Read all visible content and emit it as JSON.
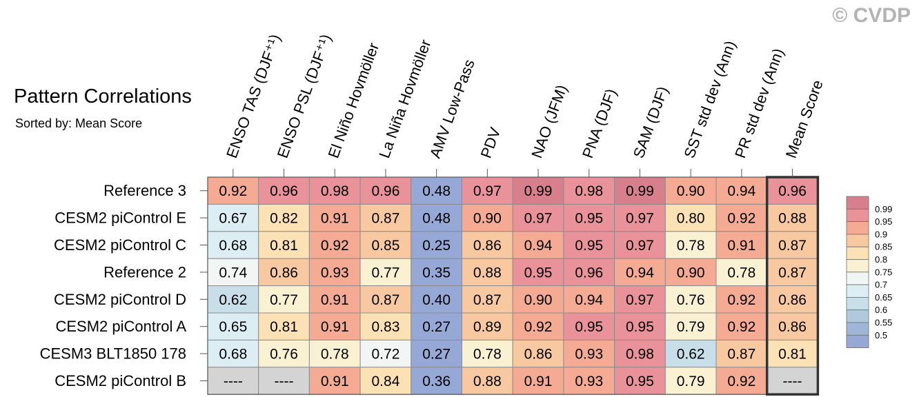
{
  "title": "Pattern Correlations",
  "subtitle": "Sorted by: Mean Score",
  "watermark": "© CVDP",
  "chart_data": {
    "type": "heatmap",
    "columns": [
      "ENSO TAS (DJF⁺¹)",
      "ENSO PSL (DJF⁺¹)",
      "El Niño Hovmöller",
      "La Niña Hovmöller",
      "AMV Low-Pass",
      "PDV",
      "NAO (JFM)",
      "PNA (DJF)",
      "SAM (DJF)",
      "SST std dev (Ann)",
      "PR std dev (Ann)",
      "Mean Score"
    ],
    "rows": [
      "Reference 3",
      "CESM2 piControl E",
      "CESM2 piControl C",
      "Reference 2",
      "CESM2 piControl D",
      "CESM2 piControl A",
      "CESM3 BLT1850 178",
      "CESM2 piControl B"
    ],
    "values": [
      [
        0.92,
        0.96,
        0.98,
        0.96,
        0.48,
        0.97,
        0.99,
        0.98,
        0.99,
        0.9,
        0.94,
        0.96
      ],
      [
        0.67,
        0.82,
        0.91,
        0.87,
        0.48,
        0.9,
        0.97,
        0.95,
        0.97,
        0.8,
        0.92,
        0.88
      ],
      [
        0.68,
        0.81,
        0.92,
        0.85,
        0.25,
        0.86,
        0.94,
        0.95,
        0.97,
        0.78,
        0.91,
        0.87
      ],
      [
        0.74,
        0.86,
        0.93,
        0.77,
        0.35,
        0.88,
        0.95,
        0.96,
        0.94,
        0.9,
        0.78,
        0.87
      ],
      [
        0.62,
        0.77,
        0.91,
        0.87,
        0.4,
        0.87,
        0.9,
        0.94,
        0.97,
        0.76,
        0.92,
        0.86
      ],
      [
        0.65,
        0.81,
        0.91,
        0.83,
        0.27,
        0.89,
        0.92,
        0.95,
        0.95,
        0.79,
        0.92,
        0.86
      ],
      [
        0.68,
        0.76,
        0.78,
        0.72,
        0.27,
        0.78,
        0.86,
        0.93,
        0.98,
        0.62,
        0.87,
        0.81
      ],
      [
        null,
        null,
        0.91,
        0.84,
        0.36,
        0.88,
        0.91,
        0.93,
        0.95,
        0.79,
        0.92,
        null
      ]
    ],
    "missing_label": "----",
    "missing_color": "#d4d4d4",
    "highlight_column": "Mean Score",
    "colorbar": {
      "labels": [
        "0.99",
        "0.95",
        "0.9",
        "0.85",
        "0.8",
        "0.75",
        "0.7",
        "0.65",
        "0.6",
        "0.55",
        "0.5"
      ],
      "colors": [
        "#d87f8d",
        "#e9929a",
        "#f4aa93",
        "#f8c9a1",
        "#fbe1b3",
        "#faf1d3",
        "#f1f6f4",
        "#dcedf4",
        "#c8dfea",
        "#b0c9dc",
        "#9fb6d8",
        "#95a8d6"
      ],
      "placement": "right"
    }
  }
}
